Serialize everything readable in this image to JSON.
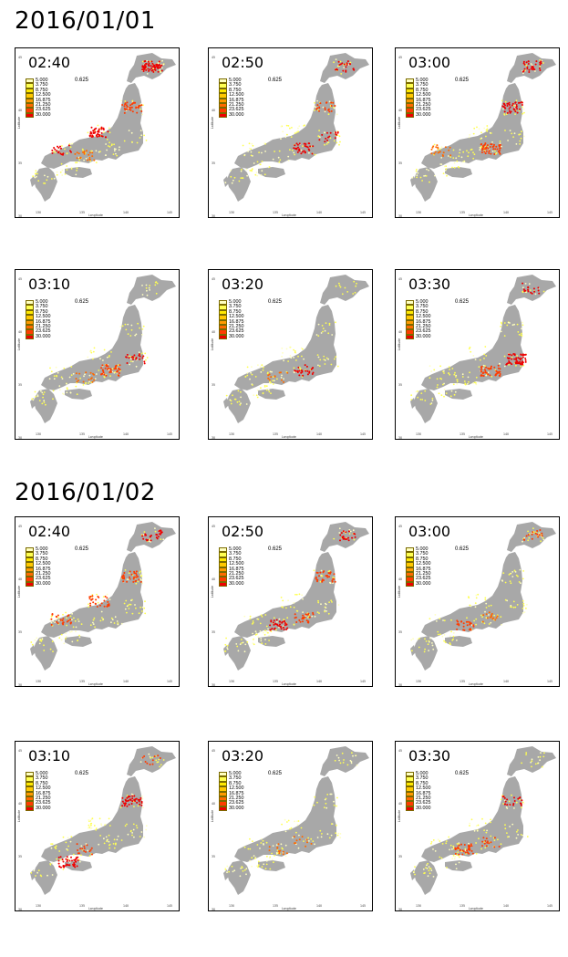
{
  "colors": {
    "land": "#a8a8a8",
    "scale": [
      "#ffffc0",
      "#ffff50",
      "#ffe800",
      "#ffc800",
      "#ff9a00",
      "#ff6a00",
      "#ff3c00",
      "#ee0000"
    ]
  },
  "chart_data": [
    {
      "type": "map",
      "title": "2016/01/01",
      "panels": [
        {
          "time": "02:40",
          "hotspots": [
            {
              "region": "hokkaido",
              "value": 30.0,
              "count": 60
            },
            {
              "region": "tohoku",
              "value": 27.25,
              "count": 35
            },
            {
              "region": "hokuriku",
              "value": 30.0,
              "count": 45
            },
            {
              "region": "kansai",
              "value": 21.75,
              "count": 20
            },
            {
              "region": "chugoku",
              "value": 30.0,
              "count": 20
            }
          ]
        },
        {
          "time": "02:50",
          "hotspots": [
            {
              "region": "hokkaido",
              "value": 30.0,
              "count": 20
            },
            {
              "region": "chubu",
              "value": 30.0,
              "count": 35
            },
            {
              "region": "tohoku",
              "value": 27.25,
              "count": 20
            },
            {
              "region": "kanto",
              "value": 30.0,
              "count": 15
            }
          ]
        },
        {
          "time": "03:00",
          "hotspots": [
            {
              "region": "hokkaido",
              "value": 30.0,
              "count": 30
            },
            {
              "region": "tohoku",
              "value": 30.0,
              "count": 40
            },
            {
              "region": "chubu",
              "value": 27.25,
              "count": 45
            },
            {
              "region": "chugoku",
              "value": 21.75,
              "count": 20
            }
          ]
        },
        {
          "time": "03:10",
          "hotspots": [
            {
              "region": "chubu",
              "value": 27.25,
              "count": 40
            },
            {
              "region": "kanto",
              "value": 30.0,
              "count": 20
            },
            {
              "region": "kansai",
              "value": 21.75,
              "count": 15
            }
          ]
        },
        {
          "time": "03:20",
          "hotspots": [
            {
              "region": "chubu",
              "value": 30.0,
              "count": 25
            },
            {
              "region": "kansai",
              "value": 21.75,
              "count": 12
            }
          ]
        },
        {
          "time": "03:30",
          "hotspots": [
            {
              "region": "hokkaido",
              "value": 30.0,
              "count": 15
            },
            {
              "region": "kanto",
              "value": 30.0,
              "count": 55
            },
            {
              "region": "chubu",
              "value": 27.25,
              "count": 45
            }
          ]
        }
      ]
    },
    {
      "type": "map",
      "title": "2016/01/02",
      "panels": [
        {
          "time": "02:40",
          "hotspots": [
            {
              "region": "hokkaido",
              "value": 30.0,
              "count": 25
            },
            {
              "region": "tohoku",
              "value": 27.25,
              "count": 30
            },
            {
              "region": "hokuriku",
              "value": 27.25,
              "count": 30
            },
            {
              "region": "chugoku",
              "value": 24.5,
              "count": 25
            }
          ]
        },
        {
          "time": "02:50",
          "hotspots": [
            {
              "region": "hokkaido",
              "value": 30.0,
              "count": 20
            },
            {
              "region": "tohoku",
              "value": 27.25,
              "count": 30
            },
            {
              "region": "kansai",
              "value": 30.0,
              "count": 35
            },
            {
              "region": "chubu",
              "value": 27.25,
              "count": 25
            }
          ]
        },
        {
          "time": "03:00",
          "hotspots": [
            {
              "region": "hokkaido",
              "value": 27.25,
              "count": 15
            },
            {
              "region": "kansai",
              "value": 27.25,
              "count": 25
            },
            {
              "region": "chubu",
              "value": 21.75,
              "count": 15
            }
          ]
        },
        {
          "time": "03:10",
          "hotspots": [
            {
              "region": "hokkaido",
              "value": 24.5,
              "count": 10
            },
            {
              "region": "tohoku",
              "value": 30.0,
              "count": 40
            },
            {
              "region": "shikoku",
              "value": 30.0,
              "count": 40
            },
            {
              "region": "kansai",
              "value": 24.5,
              "count": 15
            }
          ]
        },
        {
          "time": "03:20",
          "hotspots": [
            {
              "region": "kansai",
              "value": 21.75,
              "count": 12
            },
            {
              "region": "chubu",
              "value": 21.75,
              "count": 10
            }
          ]
        },
        {
          "time": "03:30",
          "hotspots": [
            {
              "region": "tohoku",
              "value": 30.0,
              "count": 20
            },
            {
              "region": "kansai",
              "value": 27.25,
              "count": 35
            },
            {
              "region": "chubu",
              "value": 24.5,
              "count": 15
            }
          ]
        }
      ]
    }
  ],
  "legend": {
    "values": [
      "5.000",
      "3.750",
      "8.750",
      "12.500",
      "16.875",
      "21.250",
      "23.625",
      "30.000"
    ],
    "step": "0.625"
  },
  "axes": {
    "xlabel": "Longitude",
    "ylabel": "Latitude",
    "xticks": [
      "130",
      "135",
      "140",
      "145"
    ],
    "yticks": [
      "45",
      "40",
      "35",
      "30"
    ]
  }
}
